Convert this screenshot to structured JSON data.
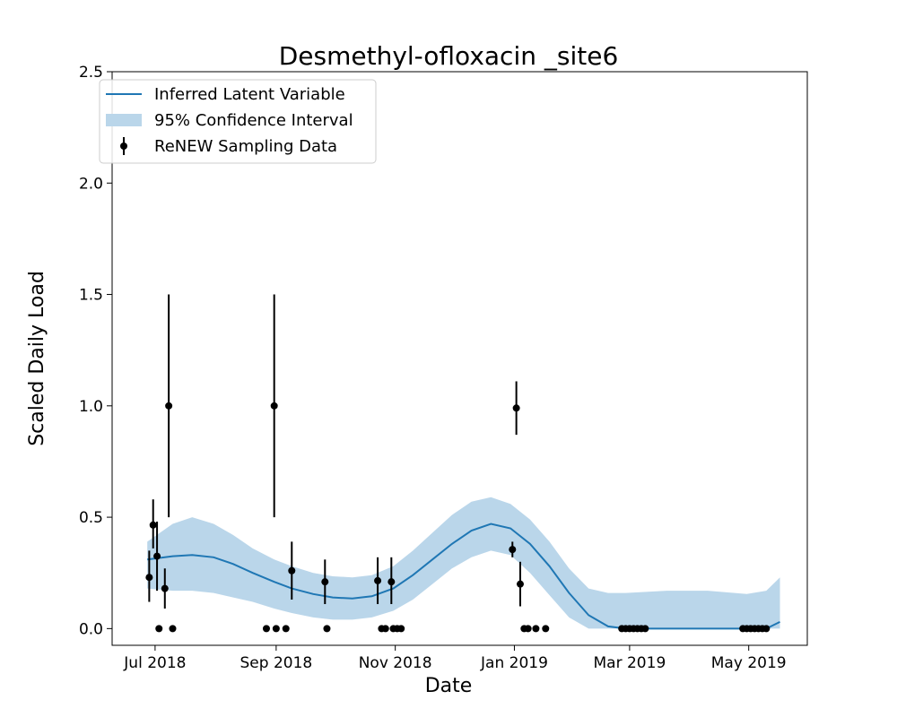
{
  "chart_data": {
    "type": "line",
    "title": "Desmethyl-ofloxacin _site6",
    "xlabel": "Date",
    "ylabel": "Scaled Daily Load",
    "xlim": [
      "2018-06-09",
      "2019-05-31"
    ],
    "ylim": [
      -0.075,
      2.5
    ],
    "x_ticks": [
      {
        "date": "2018-07-01",
        "label": "Jul 2018"
      },
      {
        "date": "2018-09-01",
        "label": "Sep 2018"
      },
      {
        "date": "2018-11-01",
        "label": "Nov 2018"
      },
      {
        "date": "2019-01-01",
        "label": "Jan 2019"
      },
      {
        "date": "2019-03-01",
        "label": "Mar 2019"
      },
      {
        "date": "2019-05-01",
        "label": "May 2019"
      }
    ],
    "y_ticks": [
      {
        "value": 0.0,
        "label": "0.0"
      },
      {
        "value": 0.5,
        "label": "0.5"
      },
      {
        "value": 1.0,
        "label": "1.0"
      },
      {
        "value": 1.5,
        "label": "1.5"
      },
      {
        "value": 2.0,
        "label": "2.0"
      },
      {
        "value": 2.5,
        "label": "2.5"
      }
    ],
    "grid": false,
    "legend_position": "top-left",
    "colors": {
      "line": "#1f77b4",
      "band": "#bad6ea",
      "points": "#000000"
    },
    "legend": [
      {
        "label": "Inferred Latent Variable",
        "kind": "line"
      },
      {
        "label": "95% Confidence Interval",
        "kind": "band"
      },
      {
        "label": "ReNEW Sampling Data",
        "kind": "errorbar"
      }
    ],
    "series": [
      {
        "name": "Inferred Latent Variable",
        "kind": "line",
        "points": [
          [
            "2018-06-27",
            0.31
          ],
          [
            "2018-07-10",
            0.325
          ],
          [
            "2018-07-20",
            0.33
          ],
          [
            "2018-07-31",
            0.32
          ],
          [
            "2018-08-10",
            0.29
          ],
          [
            "2018-08-20",
            0.25
          ],
          [
            "2018-08-31",
            0.21
          ],
          [
            "2018-09-09",
            0.18
          ],
          [
            "2018-09-20",
            0.155
          ],
          [
            "2018-09-30",
            0.14
          ],
          [
            "2018-10-10",
            0.135
          ],
          [
            "2018-10-20",
            0.145
          ],
          [
            "2018-10-31",
            0.18
          ],
          [
            "2018-11-10",
            0.24
          ],
          [
            "2018-11-20",
            0.31
          ],
          [
            "2018-11-30",
            0.38
          ],
          [
            "2018-12-10",
            0.44
          ],
          [
            "2018-12-20",
            0.47
          ],
          [
            "2018-12-30",
            0.45
          ],
          [
            "2019-01-09",
            0.38
          ],
          [
            "2019-01-19",
            0.28
          ],
          [
            "2019-01-29",
            0.16
          ],
          [
            "2019-02-08",
            0.06
          ],
          [
            "2019-02-18",
            0.01
          ],
          [
            "2019-02-27",
            0.0
          ],
          [
            "2019-03-20",
            0.0
          ],
          [
            "2019-04-10",
            0.0
          ],
          [
            "2019-04-30",
            0.0
          ],
          [
            "2019-05-10",
            0.0
          ],
          [
            "2019-05-17",
            0.03
          ]
        ]
      },
      {
        "name": "95% Confidence Interval",
        "kind": "band",
        "points": [
          [
            "2018-06-27",
            0.18,
            0.39
          ],
          [
            "2018-07-10",
            0.17,
            0.47
          ],
          [
            "2018-07-20",
            0.17,
            0.5
          ],
          [
            "2018-07-31",
            0.16,
            0.47
          ],
          [
            "2018-08-10",
            0.14,
            0.42
          ],
          [
            "2018-08-20",
            0.12,
            0.36
          ],
          [
            "2018-08-31",
            0.09,
            0.31
          ],
          [
            "2018-09-09",
            0.07,
            0.28
          ],
          [
            "2018-09-20",
            0.05,
            0.25
          ],
          [
            "2018-09-30",
            0.04,
            0.235
          ],
          [
            "2018-10-10",
            0.04,
            0.23
          ],
          [
            "2018-10-20",
            0.05,
            0.24
          ],
          [
            "2018-10-31",
            0.08,
            0.28
          ],
          [
            "2018-11-10",
            0.13,
            0.35
          ],
          [
            "2018-11-20",
            0.2,
            0.43
          ],
          [
            "2018-11-30",
            0.27,
            0.51
          ],
          [
            "2018-12-10",
            0.32,
            0.57
          ],
          [
            "2018-12-20",
            0.35,
            0.59
          ],
          [
            "2018-12-30",
            0.33,
            0.56
          ],
          [
            "2019-01-09",
            0.25,
            0.49
          ],
          [
            "2019-01-19",
            0.15,
            0.39
          ],
          [
            "2019-01-29",
            0.05,
            0.27
          ],
          [
            "2019-02-08",
            0.0,
            0.18
          ],
          [
            "2019-02-18",
            0.0,
            0.16
          ],
          [
            "2019-02-27",
            0.0,
            0.16
          ],
          [
            "2019-03-20",
            0.0,
            0.17
          ],
          [
            "2019-04-10",
            0.0,
            0.17
          ],
          [
            "2019-04-30",
            0.0,
            0.155
          ],
          [
            "2019-05-10",
            0.0,
            0.17
          ],
          [
            "2019-05-17",
            0.0,
            0.23
          ]
        ]
      },
      {
        "name": "ReNEW Sampling Data",
        "kind": "errorbar",
        "points": [
          {
            "x": "2018-06-28",
            "y": 0.23,
            "lo": 0.12,
            "hi": 0.35
          },
          {
            "x": "2018-06-30",
            "y": 0.465,
            "lo": 0.36,
            "hi": 0.58
          },
          {
            "x": "2018-07-02",
            "y": 0.325,
            "lo": 0.17,
            "hi": 0.48
          },
          {
            "x": "2018-07-03",
            "y": 0.0
          },
          {
            "x": "2018-07-06",
            "y": 0.18,
            "lo": 0.09,
            "hi": 0.27
          },
          {
            "x": "2018-07-08",
            "y": 1.0,
            "lo": 0.5,
            "hi": 1.5
          },
          {
            "x": "2018-07-10",
            "y": 0.0
          },
          {
            "x": "2018-08-27",
            "y": 0.0
          },
          {
            "x": "2018-08-31",
            "y": 1.0,
            "lo": 0.5,
            "hi": 1.5
          },
          {
            "x": "2018-09-01",
            "y": 0.0
          },
          {
            "x": "2018-09-06",
            "y": 0.0
          },
          {
            "x": "2018-09-09",
            "y": 0.26,
            "lo": 0.13,
            "hi": 0.39
          },
          {
            "x": "2018-09-26",
            "y": 0.21,
            "lo": 0.11,
            "hi": 0.31
          },
          {
            "x": "2018-09-27",
            "y": 0.0
          },
          {
            "x": "2018-10-23",
            "y": 0.215,
            "lo": 0.11,
            "hi": 0.32
          },
          {
            "x": "2018-10-25",
            "y": 0.0
          },
          {
            "x": "2018-10-27",
            "y": 0.0
          },
          {
            "x": "2018-10-30",
            "y": 0.21,
            "lo": 0.11,
            "hi": 0.32
          },
          {
            "x": "2018-10-31",
            "y": 0.0
          },
          {
            "x": "2018-11-02",
            "y": 0.0
          },
          {
            "x": "2018-11-04",
            "y": 0.0
          },
          {
            "x": "2018-12-31",
            "y": 0.355,
            "lo": 0.32,
            "hi": 0.39
          },
          {
            "x": "2019-01-02",
            "y": 0.99,
            "lo": 0.87,
            "hi": 1.11
          },
          {
            "x": "2019-01-04",
            "y": 0.2,
            "lo": 0.1,
            "hi": 0.3
          },
          {
            "x": "2019-01-06",
            "y": 0.0
          },
          {
            "x": "2019-01-08",
            "y": 0.0
          },
          {
            "x": "2019-01-12",
            "y": 0.0
          },
          {
            "x": "2019-01-17",
            "y": 0.0
          },
          {
            "x": "2019-02-25",
            "y": 0.0
          },
          {
            "x": "2019-02-27",
            "y": 0.0
          },
          {
            "x": "2019-03-01",
            "y": 0.0
          },
          {
            "x": "2019-03-03",
            "y": 0.0
          },
          {
            "x": "2019-03-05",
            "y": 0.0
          },
          {
            "x": "2019-03-07",
            "y": 0.0
          },
          {
            "x": "2019-03-09",
            "y": 0.0
          },
          {
            "x": "2019-04-28",
            "y": 0.0
          },
          {
            "x": "2019-04-30",
            "y": 0.0
          },
          {
            "x": "2019-05-02",
            "y": 0.0
          },
          {
            "x": "2019-05-04",
            "y": 0.0
          },
          {
            "x": "2019-05-06",
            "y": 0.0
          },
          {
            "x": "2019-05-08",
            "y": 0.0
          },
          {
            "x": "2019-05-10",
            "y": 0.0
          }
        ]
      }
    ]
  }
}
